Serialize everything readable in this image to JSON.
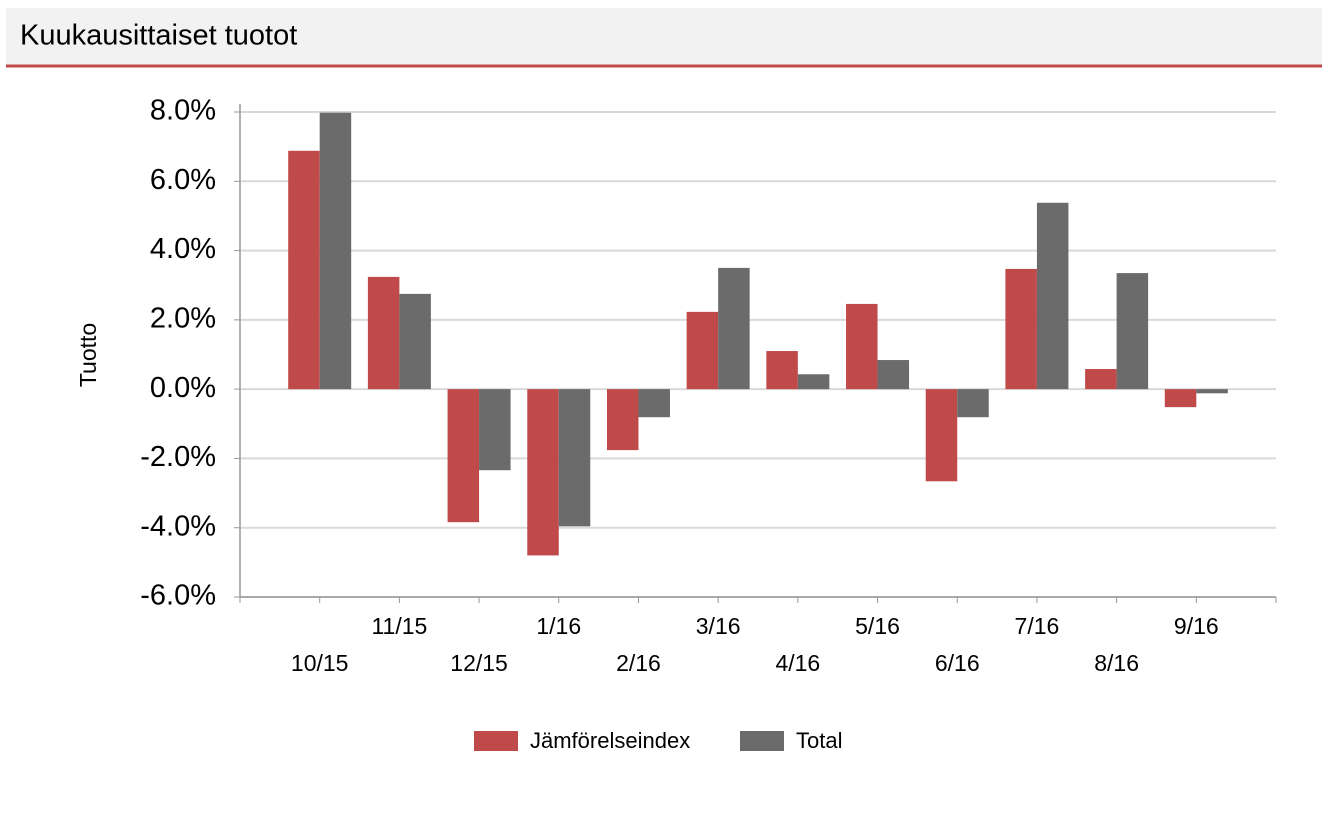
{
  "chart_data": {
    "type": "bar",
    "title": "Kuukausittaiset tuotot",
    "y_label": "Tuotto",
    "categories": [
      "10/15",
      "11/15",
      "12/15",
      "1/16",
      "2/16",
      "3/16",
      "4/16",
      "5/16",
      "6/16",
      "7/16",
      "8/16",
      "9/16"
    ],
    "series": [
      {
        "name": "Jämförelseindex",
        "color": "#c0494a",
        "values": [
          6.88,
          3.24,
          -3.84,
          -4.8,
          -1.76,
          2.23,
          1.1,
          2.46,
          -2.66,
          3.47,
          0.58,
          -0.52
        ]
      },
      {
        "name": "Total",
        "color": "#6b6b6b",
        "values": [
          7.98,
          2.75,
          -2.34,
          -3.96,
          -0.81,
          3.5,
          0.43,
          0.84,
          -0.81,
          5.38,
          3.35,
          -0.12
        ]
      }
    ],
    "ylim": [
      -6,
      8
    ],
    "yticks": [
      {
        "value": -6,
        "label": "-6.0%"
      },
      {
        "value": -4,
        "label": "-4.0%"
      },
      {
        "value": -2,
        "label": "-2.0%"
      },
      {
        "value": 0,
        "label": "0.0%"
      },
      {
        "value": 2,
        "label": "2.0%"
      },
      {
        "value": 4,
        "label": "4.0%"
      },
      {
        "value": 6,
        "label": "6.0%"
      },
      {
        "value": 8,
        "label": "8.0%"
      }
    ],
    "grid": true
  }
}
